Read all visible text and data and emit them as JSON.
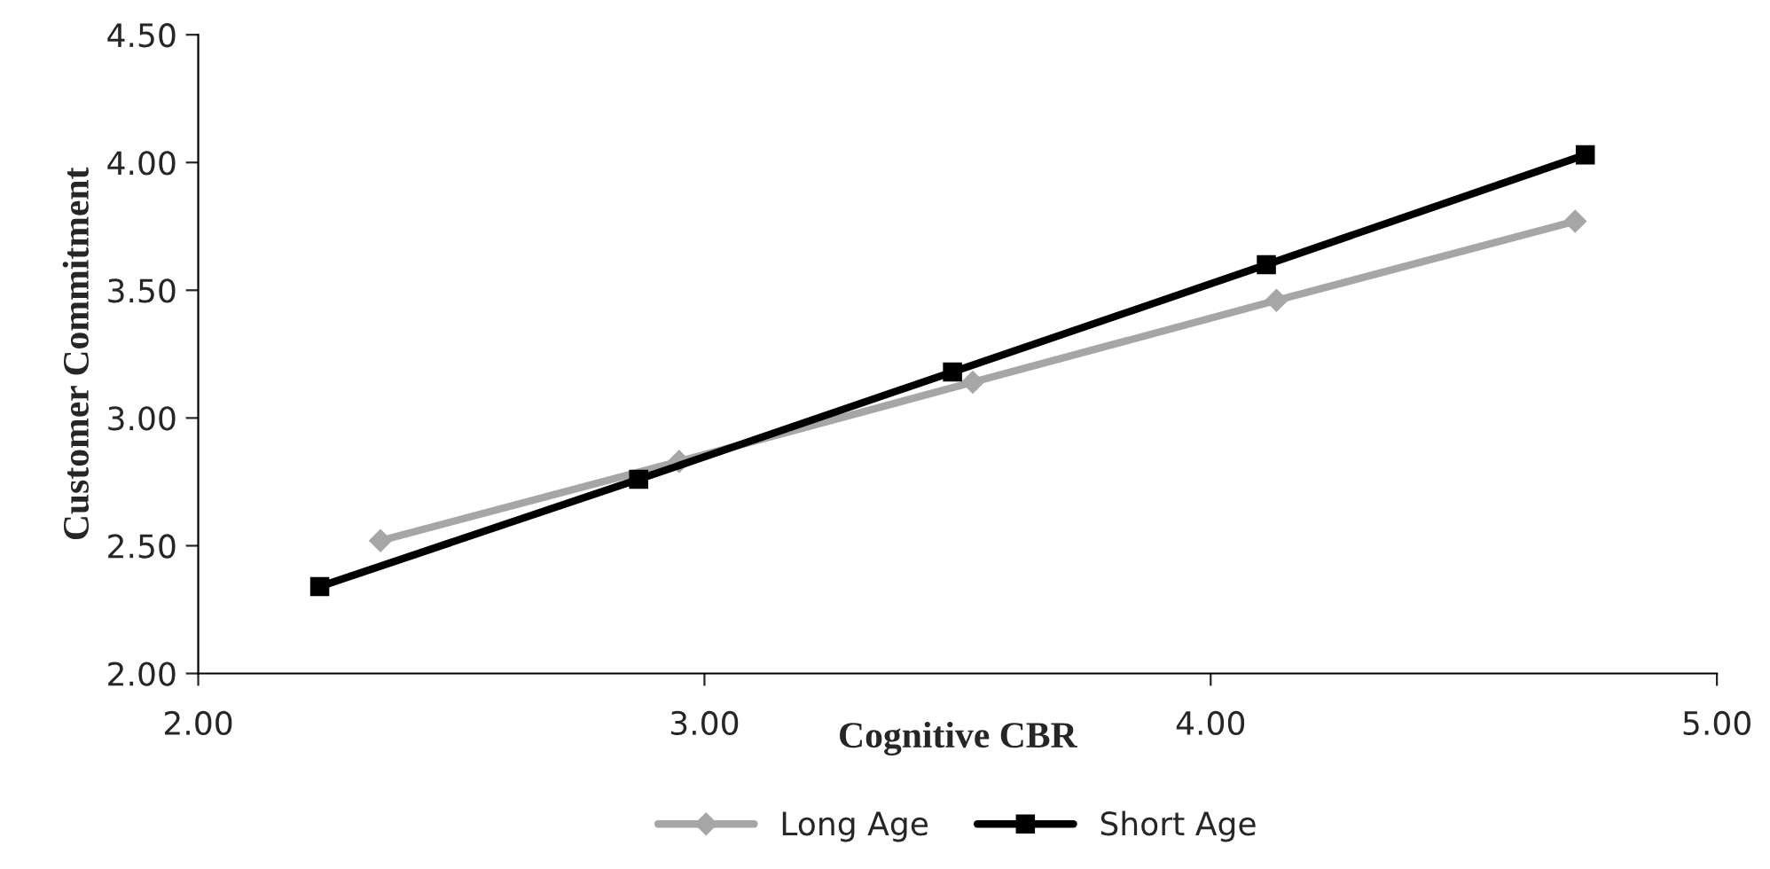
{
  "chart_data": {
    "type": "line",
    "xlabel": "Cognitive CBR",
    "ylabel": "Customer Commitment",
    "xlim": [
      2.0,
      5.0
    ],
    "xticks": [
      {
        "value": 2.0,
        "label": "2.00"
      },
      {
        "value": 3.0,
        "label": "3.00"
      },
      {
        "value": 4.0,
        "label": "4.00"
      },
      {
        "value": 5.0,
        "label": "5.00"
      }
    ],
    "ylim": [
      2.0,
      4.5
    ],
    "yticks": [
      {
        "value": 2.0,
        "label": "2.00"
      },
      {
        "value": 2.5,
        "label": "2.50"
      },
      {
        "value": 3.0,
        "label": "3.00"
      },
      {
        "value": 3.5,
        "label": "3.50"
      },
      {
        "value": 4.0,
        "label": "4.00"
      },
      {
        "value": 4.5,
        "label": "4.50"
      }
    ],
    "series": [
      {
        "name": "Long Age",
        "color": "#a6a6a6",
        "marker": "diamond",
        "x": [
          2.36,
          2.95,
          3.53,
          4.13,
          4.72
        ],
        "values": [
          2.52,
          2.83,
          3.14,
          3.46,
          3.77
        ]
      },
      {
        "name": "Short Age",
        "color": "#000000",
        "marker": "square",
        "x": [
          2.24,
          2.87,
          3.49,
          4.11,
          4.74
        ],
        "values": [
          2.34,
          2.76,
          3.18,
          3.6,
          4.03
        ]
      }
    ],
    "grid": false,
    "legend": "bottom"
  }
}
